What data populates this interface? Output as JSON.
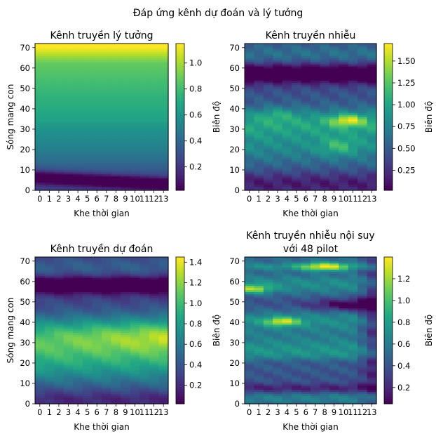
{
  "figure": {
    "suptitle": "Đáp ứng kênh dự đoán và lý tưởng"
  },
  "colormap": "viridis",
  "chart_data": [
    {
      "type": "heatmap",
      "title": "Kênh truyền lý tưởng",
      "xlabel": "Khe thời gian",
      "ylabel": "Sóng mang con",
      "colorbar_label": "Biên độ",
      "x_ticks": [
        "0",
        "1",
        "2",
        "3",
        "4",
        "5",
        "6",
        "7",
        "8",
        "9",
        "10",
        "11",
        "12",
        "13"
      ],
      "y_ticks": [
        "0",
        "10",
        "20",
        "30",
        "40",
        "50",
        "60",
        "70"
      ],
      "ylim": [
        0,
        72
      ],
      "colorbar_ticks": [
        "0.2",
        "0.4",
        "0.6",
        "0.8",
        "1.0"
      ],
      "colorbar_range": [
        0.02,
        1.15
      ],
      "grid_size": [
        14,
        72
      ],
      "description_values": {
        "top_rows_64_72": 1.1,
        "upper_rows_45_64": 0.7,
        "middle_rows_20_45": 0.5,
        "dark_band_near_row_5": 0.05,
        "bottom_rows_0_3": 0.25
      }
    },
    {
      "type": "heatmap",
      "title": "Kênh truyền nhiễu",
      "xlabel": "Khe thời gian",
      "ylabel": "",
      "colorbar_label": "Biên độ",
      "x_ticks": [
        "0",
        "1",
        "2",
        "3",
        "4",
        "5",
        "6",
        "7",
        "8",
        "9",
        "10",
        "11",
        "12",
        "13"
      ],
      "y_ticks": [
        "0",
        "10",
        "20",
        "30",
        "40",
        "50",
        "60",
        "70"
      ],
      "ylim": [
        0,
        72
      ],
      "colorbar_ticks": [
        "0.25",
        "0.50",
        "0.75",
        "1.00",
        "1.25",
        "1.50"
      ],
      "colorbar_range": [
        0.02,
        1.7
      ],
      "grid_size": [
        14,
        72
      ],
      "description_values": {
        "dark_band_rows_55_60": 0.1,
        "bright_hotspot_row_34_slot_11": 1.6,
        "bright_rows_30_40": 1.2,
        "mid_rows_15_30": 0.9,
        "bottom_rows_0_10": 0.4
      }
    },
    {
      "type": "heatmap",
      "title": "Kênh truyền dự đoán",
      "xlabel": "Khe thời gian",
      "ylabel": "Sóng mang con",
      "colorbar_label": "Biên độ",
      "x_ticks": [
        "0",
        "1",
        "2",
        "3",
        "4",
        "5",
        "6",
        "7",
        "8",
        "9",
        "10",
        "11",
        "12",
        "13"
      ],
      "y_ticks": [
        "0",
        "10",
        "20",
        "30",
        "40",
        "50",
        "60",
        "70"
      ],
      "ylim": [
        0,
        72
      ],
      "colorbar_ticks": [
        "0.2",
        "0.4",
        "0.6",
        "0.8",
        "1.0",
        "1.2",
        "1.4"
      ],
      "colorbar_range": [
        0.02,
        1.45
      ],
      "grid_size": [
        14,
        72
      ],
      "description_values": {
        "dark_band_rows_55_60": 0.1,
        "bright_rows_25_42_right": 1.4,
        "mid_rows_15_25": 0.8,
        "bottom_rows_0_5": 0.2
      }
    },
    {
      "type": "heatmap",
      "title": "Kênh truyền nhiễu nội suy\nvới 48 pilot",
      "title_lines": [
        "Kênh truyền nhiễu nội suy",
        "với 48 pilot"
      ],
      "xlabel": "Khe thời gian",
      "ylabel": "",
      "colorbar_label": "Biên độ",
      "x_ticks": [
        "0",
        "1",
        "2",
        "3",
        "4",
        "5",
        "6",
        "7",
        "8",
        "9",
        "10",
        "11",
        "12",
        "13"
      ],
      "y_ticks": [
        "0",
        "10",
        "20",
        "30",
        "40",
        "50",
        "60",
        "70"
      ],
      "ylim": [
        0,
        72
      ],
      "colorbar_ticks": [
        "0.2",
        "0.4",
        "0.6",
        "0.8",
        "1.0",
        "1.2"
      ],
      "colorbar_range": [
        0.05,
        1.4
      ],
      "grid_size": [
        14,
        72
      ],
      "description_values": {
        "bright_row_67_slots_7_9": 1.35,
        "bright_row_55_slots_0_1": 1.2,
        "bright_row_40_slots_3_4": 1.2,
        "dark_rows_45_50_right": 0.2,
        "dark_row_7": 0.1
      }
    }
  ]
}
